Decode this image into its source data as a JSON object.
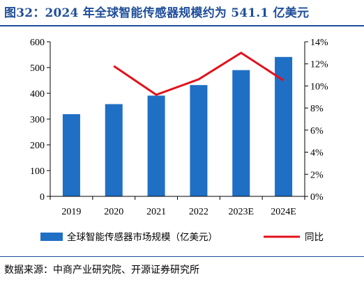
{
  "title": "图32：2024 年全球智能传感器规模约为 541.1 亿美元",
  "source": "数据来源：中商产业研究院、开源证券研究所",
  "chart_data": {
    "type": "bar",
    "categories": [
      "2019",
      "2020",
      "2021",
      "2022",
      "2023E",
      "2024E"
    ],
    "series": [
      {
        "name": "全球智能传感器市场规模（亿美元）",
        "type": "bar",
        "axis": "left",
        "color": "#1f6fc5",
        "values": [
          319,
          358,
          391,
          432,
          490,
          541.1
        ]
      },
      {
        "name": "同比",
        "type": "line",
        "axis": "right",
        "color": "#e3101b",
        "values": [
          null,
          0.118,
          0.092,
          0.106,
          0.13,
          0.105
        ]
      }
    ],
    "y_left": {
      "ylim": [
        0,
        600
      ],
      "ticks": [
        0,
        100,
        200,
        300,
        400,
        500,
        600
      ],
      "tick_labels": [
        "0",
        "100",
        "200",
        "300",
        "400",
        "500",
        "600"
      ]
    },
    "y_right": {
      "ylim": [
        0,
        0.14
      ],
      "ticks": [
        0,
        0.02,
        0.04,
        0.06,
        0.08,
        0.1,
        0.12,
        0.14
      ],
      "tick_labels": [
        "0%",
        "2%",
        "4%",
        "6%",
        "8%",
        "10%",
        "12%",
        "14%"
      ]
    },
    "grid": false,
    "legend_position": "bottom"
  }
}
